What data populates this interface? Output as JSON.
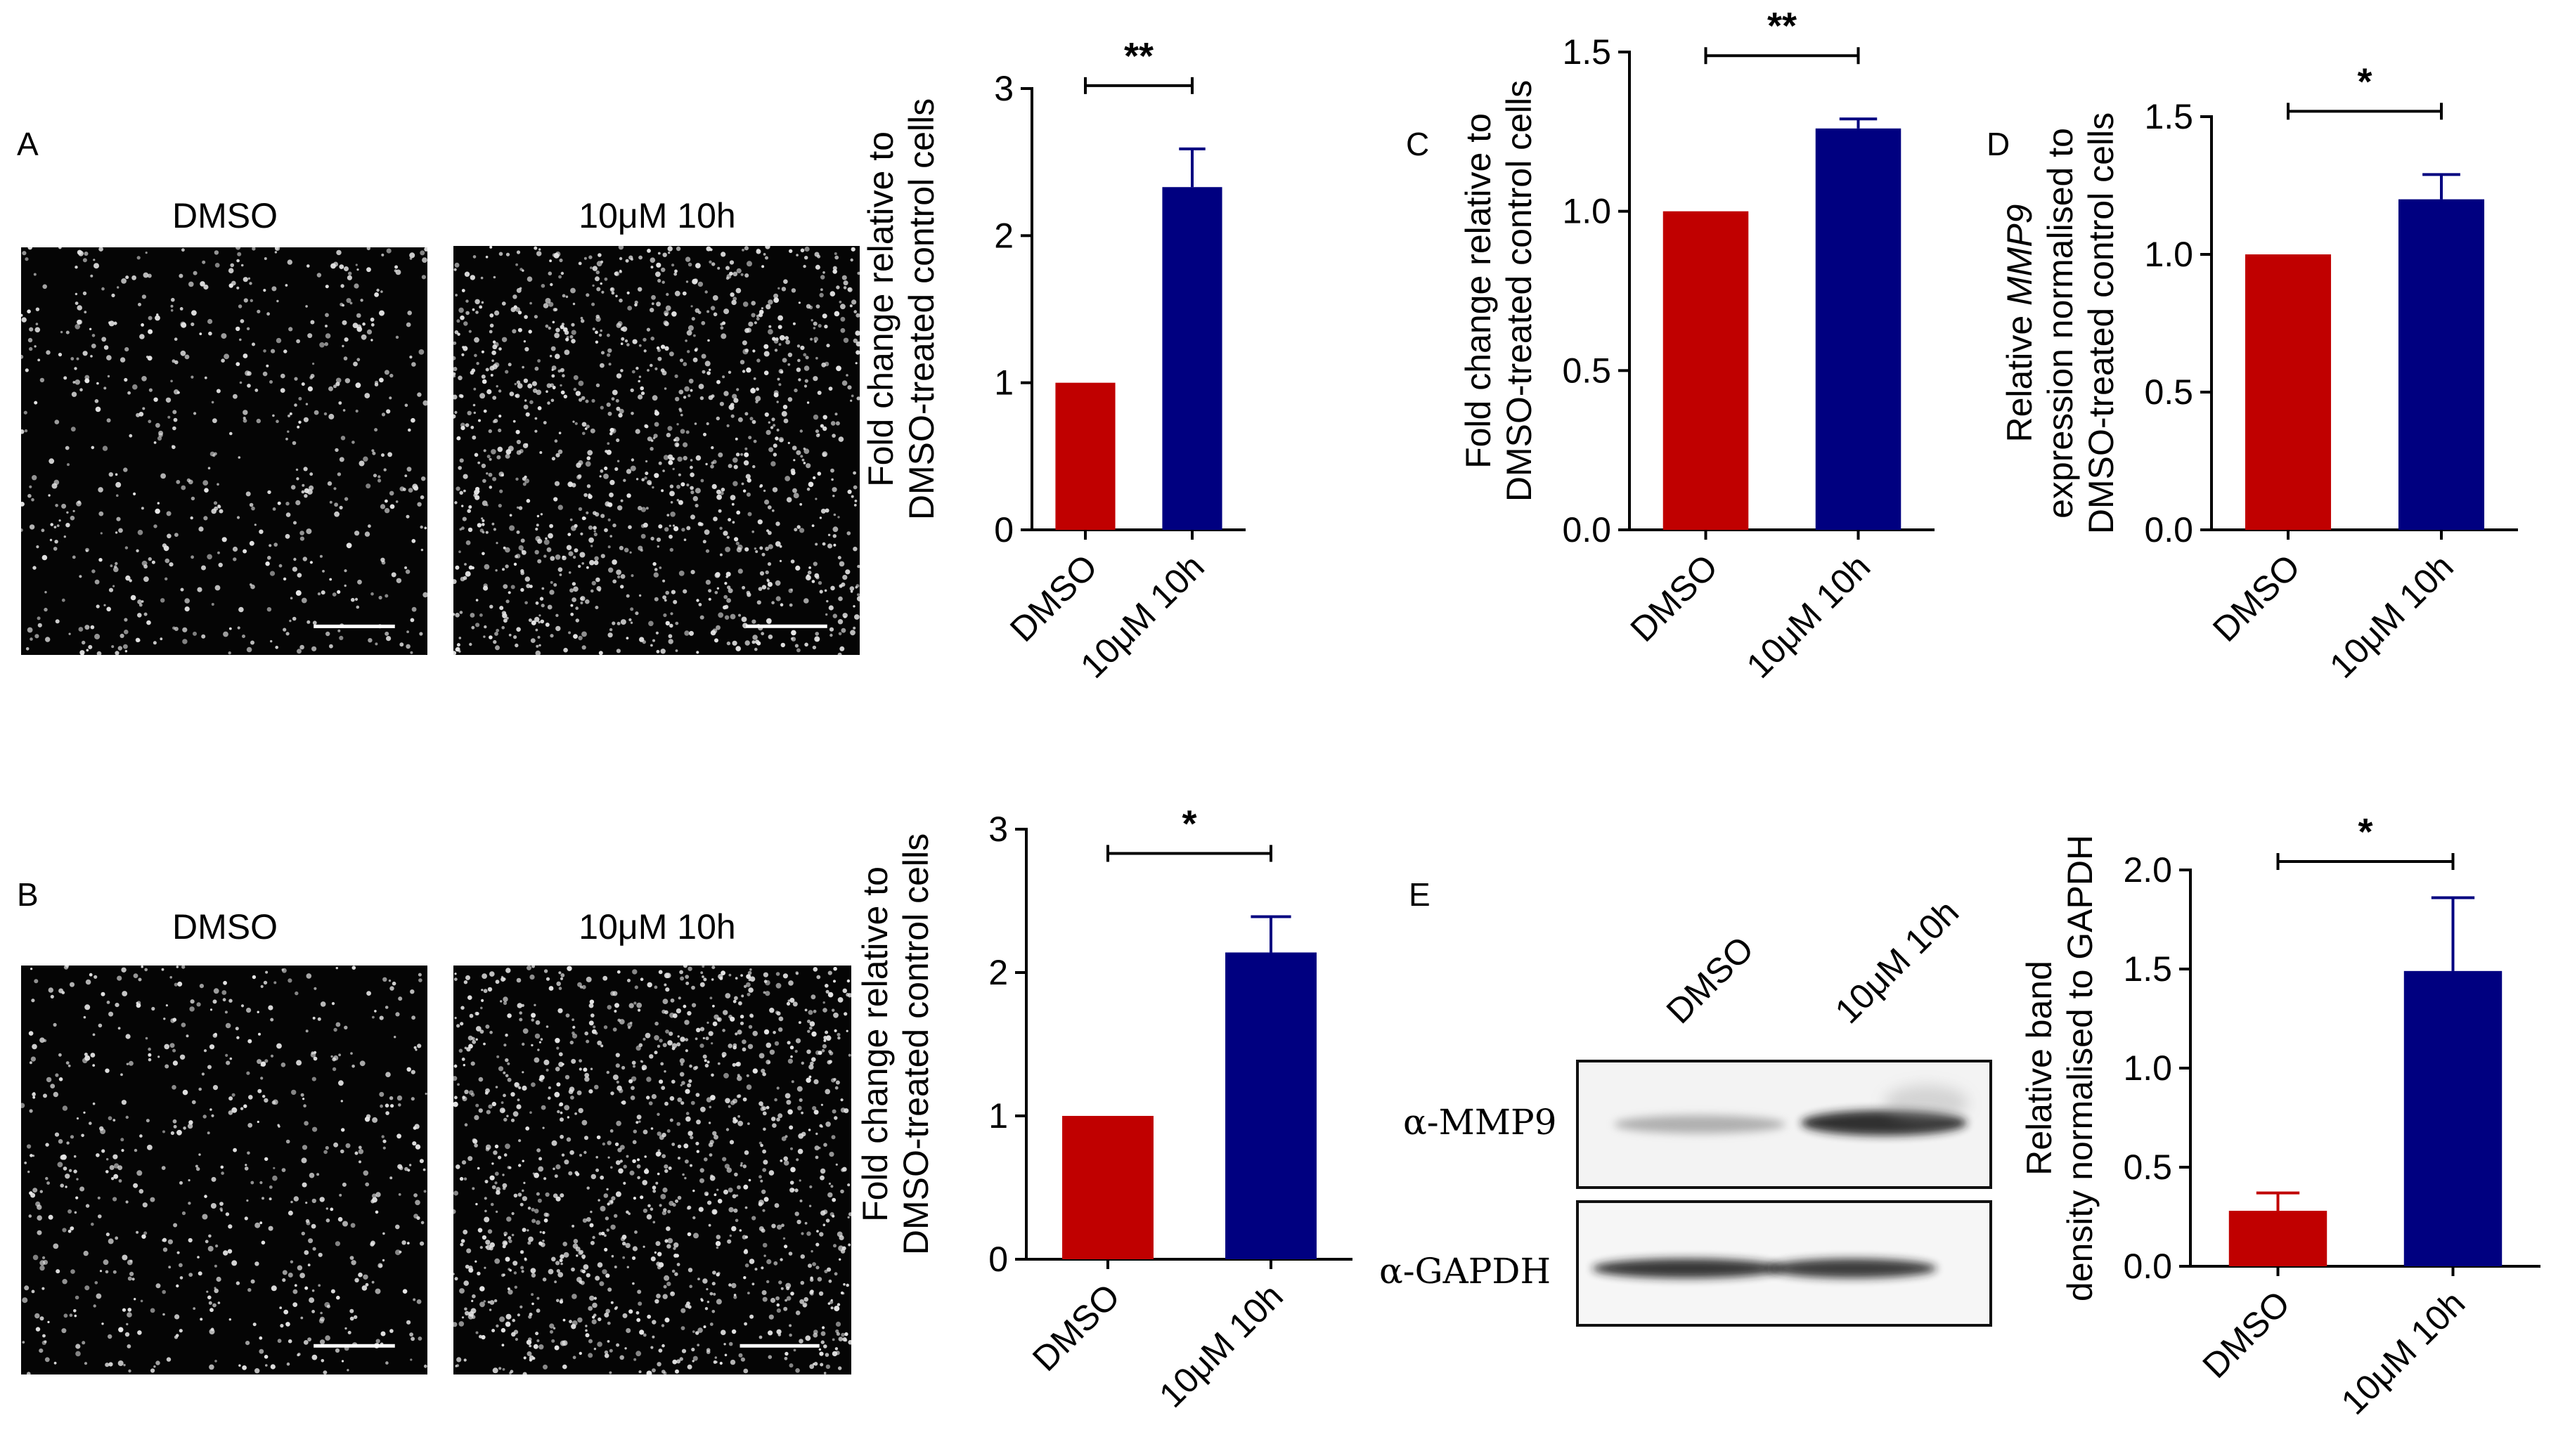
{
  "panels": {
    "A": {
      "letter": "A",
      "images": [
        {
          "title": "DMSO",
          "density": "low"
        },
        {
          "title": "10μM 10h",
          "density": "high"
        }
      ]
    },
    "B": {
      "letter": "B",
      "images": [
        {
          "title": "DMSO",
          "density": "low"
        },
        {
          "title": "10μM 10h",
          "density": "high"
        }
      ]
    },
    "C": {
      "letter": "C"
    },
    "D": {
      "letter": "D"
    },
    "E": {
      "letter": "E",
      "blot": {
        "lanes": [
          "DMSO",
          "10μM 10h"
        ],
        "antibodies": [
          "α-MMP9",
          "α-GAPDH"
        ]
      }
    }
  },
  "colors": {
    "dmso_bar": "#c00000",
    "treated_bar": "#000080",
    "axis": "#000000"
  },
  "chart_data": [
    {
      "id": "A-chart",
      "type": "bar",
      "categories": [
        "DMSO",
        "10μM 10h"
      ],
      "values": [
        1.0,
        2.33
      ],
      "errors": [
        0,
        0.26
      ],
      "ylabel_lines": [
        "Fold change relative to",
        "DMSO-treated control cells"
      ],
      "ylim": [
        0,
        3
      ],
      "yticks": [
        "0",
        "1",
        "2",
        "3"
      ],
      "significance": "**"
    },
    {
      "id": "C-chart",
      "type": "bar",
      "categories": [
        "DMSO",
        "10μM 10h"
      ],
      "values": [
        1.0,
        1.26
      ],
      "errors": [
        0,
        0.03
      ],
      "ylabel_lines": [
        "Fold change relative to",
        "DMSO-treated control cells"
      ],
      "ylim": [
        0,
        1.5
      ],
      "yticks": [
        "0.0",
        "0.5",
        "1.0",
        "1.5"
      ],
      "significance": "**"
    },
    {
      "id": "D-chart",
      "type": "bar",
      "categories": [
        "DMSO",
        "10μM 10h"
      ],
      "values": [
        1.0,
        1.2
      ],
      "errors": [
        0,
        0.09
      ],
      "ylabel_lines": [
        "Relative MMP9",
        "expression normalised to",
        "DMSO-treated control cells"
      ],
      "ylabel_italic_word": "MMP9",
      "ylim": [
        0,
        1.5
      ],
      "yticks": [
        "0.0",
        "0.5",
        "1.0",
        "1.5"
      ],
      "significance": "*"
    },
    {
      "id": "B-chart",
      "type": "bar",
      "categories": [
        "DMSO",
        "10μM 10h"
      ],
      "values": [
        1.0,
        2.14
      ],
      "errors": [
        0,
        0.25
      ],
      "ylabel_lines": [
        "Fold change relative to",
        "DMSO-treated control cells"
      ],
      "ylim": [
        0,
        3
      ],
      "yticks": [
        "0",
        "1",
        "2",
        "3"
      ],
      "significance": "*"
    },
    {
      "id": "E-chart",
      "type": "bar",
      "categories": [
        "DMSO",
        "10μM 10h"
      ],
      "values": [
        0.28,
        1.49
      ],
      "errors": [
        0.09,
        0.37
      ],
      "ylabel_lines": [
        "Relative band",
        "density normalised to GAPDH"
      ],
      "ylim": [
        0,
        2.0
      ],
      "yticks": [
        "0.0",
        "0.5",
        "1.0",
        "1.5",
        "2.0"
      ],
      "significance": "*"
    }
  ]
}
